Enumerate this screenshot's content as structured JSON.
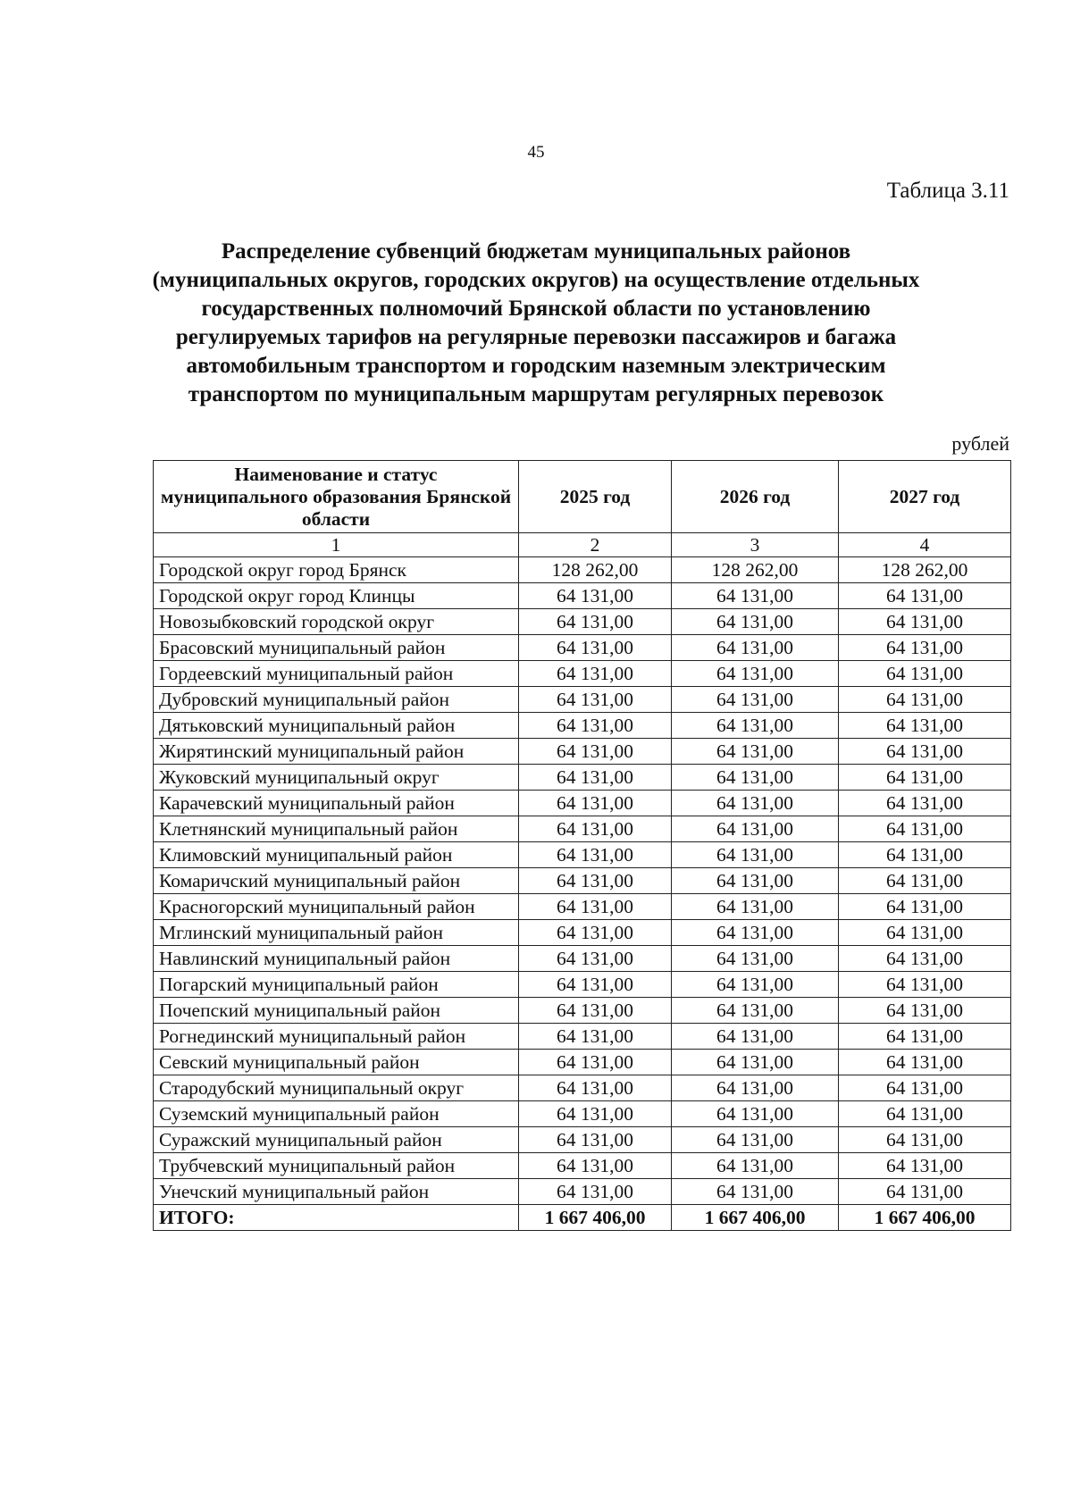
{
  "page_number": "45",
  "table_label": "Таблица 3.11",
  "title_lines": [
    "Распределение субвенций бюджетам муниципальных районов",
    "(муниципальных округов, городских округов) на осуществление отдельных",
    "государственных полномочий Брянской области по установлению",
    "регулируемых тарифов на регулярные перевозки пассажиров и багажа",
    "автомобильным транспортом и городским наземным электрическим",
    "транспортом по муниципальным маршрутам регулярных перевозок"
  ],
  "units": "рублей",
  "table": {
    "header": [
      "Наименование и статус муниципального образования Брянской области",
      "2025 год",
      "2026 год",
      "2027 год"
    ],
    "column_numbers": [
      "1",
      "2",
      "3",
      "4"
    ],
    "rows": [
      [
        "Городской округ город Брянск",
        "128 262,00",
        "128 262,00",
        "128 262,00"
      ],
      [
        "Городской округ город Клинцы",
        "64 131,00",
        "64 131,00",
        "64 131,00"
      ],
      [
        "Новозыбковский городской округ",
        "64 131,00",
        "64 131,00",
        "64 131,00"
      ],
      [
        "Брасовский муниципальный район",
        "64 131,00",
        "64 131,00",
        "64 131,00"
      ],
      [
        "Гордеевский муниципальный район",
        "64 131,00",
        "64 131,00",
        "64 131,00"
      ],
      [
        "Дубровский муниципальный район",
        "64 131,00",
        "64 131,00",
        "64 131,00"
      ],
      [
        "Дятьковский муниципальный район",
        "64 131,00",
        "64 131,00",
        "64 131,00"
      ],
      [
        "Жирятинский муниципальный район",
        "64 131,00",
        "64 131,00",
        "64 131,00"
      ],
      [
        "Жуковский муниципальный округ",
        "64 131,00",
        "64 131,00",
        "64 131,00"
      ],
      [
        "Карачевский муниципальный район",
        "64 131,00",
        "64 131,00",
        "64 131,00"
      ],
      [
        "Клетнянский муниципальный район",
        "64 131,00",
        "64 131,00",
        "64 131,00"
      ],
      [
        "Климовский муниципальный район",
        "64 131,00",
        "64 131,00",
        "64 131,00"
      ],
      [
        "Комаричский муниципальный район",
        "64 131,00",
        "64 131,00",
        "64 131,00"
      ],
      [
        "Красногорский муниципальный район",
        "64 131,00",
        "64 131,00",
        "64 131,00"
      ],
      [
        "Мглинский муниципальный район",
        "64 131,00",
        "64 131,00",
        "64 131,00"
      ],
      [
        "Навлинский муниципальный район",
        "64 131,00",
        "64 131,00",
        "64 131,00"
      ],
      [
        "Погарский муниципальный район",
        "64 131,00",
        "64 131,00",
        "64 131,00"
      ],
      [
        "Почепский муниципальный район",
        "64 131,00",
        "64 131,00",
        "64 131,00"
      ],
      [
        "Рогнединский муниципальный район",
        "64 131,00",
        "64 131,00",
        "64 131,00"
      ],
      [
        "Севский муниципальный район",
        "64 131,00",
        "64 131,00",
        "64 131,00"
      ],
      [
        "Стародубский муниципальный округ",
        "64 131,00",
        "64 131,00",
        "64 131,00"
      ],
      [
        "Суземский муниципальный район",
        "64 131,00",
        "64 131,00",
        "64 131,00"
      ],
      [
        "Суражский муниципальный район",
        "64 131,00",
        "64 131,00",
        "64 131,00"
      ],
      [
        "Трубчевский муниципальный район",
        "64 131,00",
        "64 131,00",
        "64 131,00"
      ],
      [
        "Унечский муниципальный район",
        "64 131,00",
        "64 131,00",
        "64 131,00"
      ]
    ],
    "total": [
      "ИТОГО:",
      "1 667 406,00",
      "1 667 406,00",
      "1 667 406,00"
    ]
  }
}
